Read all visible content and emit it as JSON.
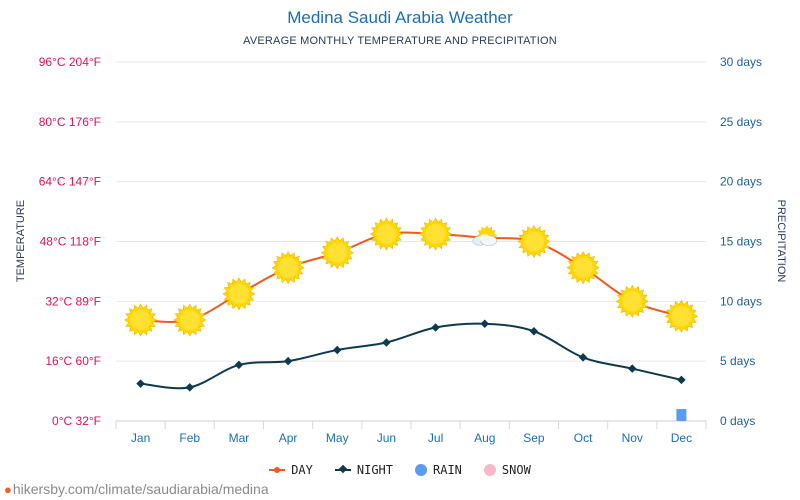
{
  "colors": {
    "day": "#f05a1e",
    "night": "#0d3a4f",
    "rain": "#5b9cf0",
    "snow": "#f7b8c8",
    "temp_axis": "#e0115f",
    "precip_axis": "#1f5f94",
    "month_axis": "#1a6fb5",
    "sun": "#ffd800"
  },
  "header": {
    "title": "Medina Saudi Arabia Weather",
    "subtitle": "AVERAGE MONTHLY TEMPERATURE AND PRECIPITATION"
  },
  "footer": {
    "source": "hikersby.com/climate/saudiarabia/medina"
  },
  "chart_data": {
    "type": "line",
    "categories": [
      "Jan",
      "Feb",
      "Mar",
      "Apr",
      "May",
      "Jun",
      "Jul",
      "Aug",
      "Sep",
      "Oct",
      "Nov",
      "Dec"
    ],
    "ylabel": "TEMPERATURE",
    "y2label": "PRECIPITATION",
    "ylim_celsius": [
      0,
      96
    ],
    "y2lim_days": [
      0,
      30
    ],
    "y_ticks": [
      {
        "value": 0,
        "label": "0°C 32°F"
      },
      {
        "value": 16,
        "label": "16°C 60°F"
      },
      {
        "value": 32,
        "label": "32°C 89°F"
      },
      {
        "value": 48,
        "label": "48°C 118°F"
      },
      {
        "value": 64,
        "label": "64°C 147°F"
      },
      {
        "value": 80,
        "label": "80°C 176°F"
      },
      {
        "value": 96,
        "label": "96°C 204°F"
      }
    ],
    "y2_ticks": [
      {
        "value": 0,
        "label": "0 days"
      },
      {
        "value": 5,
        "label": "5 days"
      },
      {
        "value": 10,
        "label": "10 days"
      },
      {
        "value": 15,
        "label": "15 days"
      },
      {
        "value": 20,
        "label": "20 days"
      },
      {
        "value": 25,
        "label": "25 days"
      },
      {
        "value": 30,
        "label": "30 days"
      }
    ],
    "series": [
      {
        "name": "DAY",
        "values": [
          27,
          27,
          34,
          41,
          45,
          50,
          50,
          49,
          48,
          41,
          32,
          28
        ]
      },
      {
        "name": "NIGHT",
        "values": [
          10,
          9,
          15,
          16,
          19,
          21,
          25,
          26,
          24,
          17,
          14,
          11
        ]
      },
      {
        "name": "RAIN",
        "values": [
          0,
          0,
          0,
          0,
          0,
          0,
          0,
          0,
          0,
          0,
          0,
          1
        ]
      },
      {
        "name": "SNOW",
        "values": [
          0,
          0,
          0,
          0,
          0,
          0,
          0,
          0,
          0,
          0,
          0,
          0
        ]
      }
    ],
    "weather_icons": [
      "sun",
      "sun",
      "sun",
      "sun",
      "sun",
      "sun",
      "sun",
      "sun-cloud",
      "sun",
      "sun",
      "sun",
      "sun"
    ],
    "grid": true,
    "legend_position": "bottom"
  }
}
